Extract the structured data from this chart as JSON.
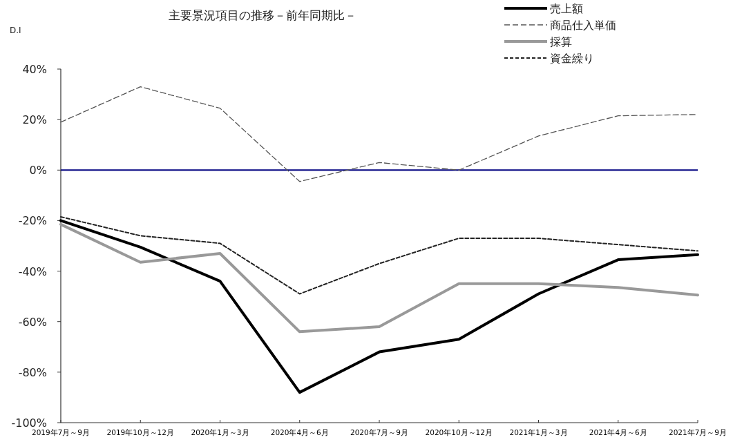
{
  "chart_data": {
    "type": "line",
    "title": "主要景況項目の推移－前年同期比－",
    "ylabel": "D.I",
    "categories": [
      "2019年7月～9月",
      "2019年10月～12月",
      "2020年1月～3月",
      "2020年4月～6月",
      "2020年7月～9月",
      "2020年10月～12月",
      "2021年1月～3月",
      "2021年4月～6月",
      "2021年7月～9月"
    ],
    "series": [
      {
        "name": "売上額",
        "color": "#000000",
        "line_style": "solid",
        "values": [
          -20,
          -30.5,
          -44,
          -88,
          -72,
          -67,
          -49,
          -35.5,
          -33.5
        ]
      },
      {
        "name": "商品仕入単価",
        "color": "#555555",
        "line_style": "dashed",
        "values": [
          19,
          33,
          24.5,
          -4.5,
          3,
          0,
          13.5,
          21.5,
          22
        ]
      },
      {
        "name": "採算",
        "color": "#999999",
        "line_style": "solid",
        "values": [
          -21.5,
          -36.5,
          -33,
          -64,
          -62,
          -45,
          -45,
          -46.5,
          -49.5
        ]
      },
      {
        "name": "資金繰り",
        "color": "#222222",
        "line_style": "dashed",
        "values": [
          -18.5,
          -26,
          -29,
          -49,
          -37,
          -27,
          -27,
          -29.5,
          -32
        ]
      }
    ],
    "ylim": [
      -100,
      40
    ],
    "yticks": [
      {
        "value": -100,
        "label": "-100%"
      },
      {
        "value": -80,
        "label": "-80%"
      },
      {
        "value": -60,
        "label": "-60%"
      },
      {
        "value": -40,
        "label": "-40%"
      },
      {
        "value": -20,
        "label": "-20%"
      },
      {
        "value": 0,
        "label": "0%"
      },
      {
        "value": 20,
        "label": "20%"
      },
      {
        "value": 40,
        "label": "40%"
      }
    ],
    "ref_lines": [
      {
        "axis": "y",
        "value": 0,
        "color": "#000080"
      }
    ],
    "grid": false,
    "legend": "top right",
    "marker": "none"
  }
}
